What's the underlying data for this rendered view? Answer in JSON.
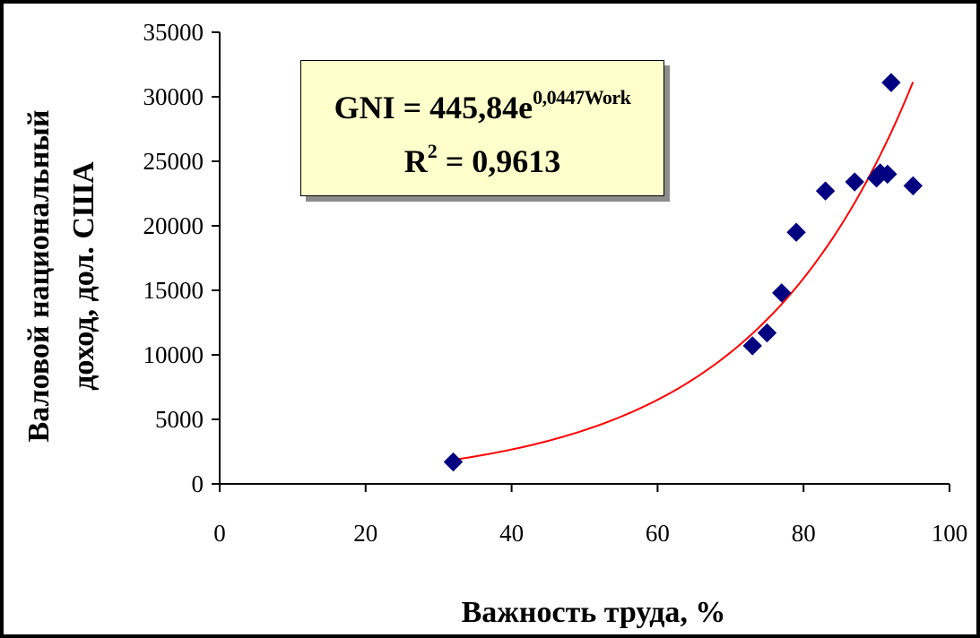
{
  "chart_data": {
    "type": "scatter",
    "xlabel": "Важность труда, %",
    "ylabel_lines": [
      "Валовой национальный",
      "доход, дол. США"
    ],
    "xlim": [
      0,
      100
    ],
    "ylim": [
      0,
      35000
    ],
    "x_ticks": [
      0,
      20,
      40,
      60,
      80,
      100
    ],
    "y_ticks": [
      0,
      5000,
      10000,
      15000,
      20000,
      25000,
      30000,
      35000
    ],
    "x_tick_labels": [
      "0",
      "20",
      "40",
      "60",
      "80",
      "100"
    ],
    "y_tick_labels": [
      "0",
      "5000",
      "10000",
      "15000",
      "20000",
      "25000",
      "30000",
      "35000"
    ],
    "series": [
      {
        "marker": "diamond",
        "color": "#000080",
        "points": [
          {
            "x": 32,
            "y": 1700
          },
          {
            "x": 73,
            "y": 10700
          },
          {
            "x": 75,
            "y": 11700
          },
          {
            "x": 77,
            "y": 14800
          },
          {
            "x": 79,
            "y": 19500
          },
          {
            "x": 83,
            "y": 22700
          },
          {
            "x": 87,
            "y": 23400
          },
          {
            "x": 90,
            "y": 23700
          },
          {
            "x": 90.5,
            "y": 24100
          },
          {
            "x": 91.5,
            "y": 24000
          },
          {
            "x": 92,
            "y": 31100
          },
          {
            "x": 95,
            "y": 23100
          }
        ]
      }
    ],
    "trendline": {
      "type": "exponential",
      "a": 445.84,
      "b": 0.0447,
      "x_range": [
        32,
        95
      ],
      "color": "#ff0000",
      "equation_prefix": "GNI = 445,84e",
      "equation_exponent": "0,0447Work",
      "r2_prefix": "R",
      "r2_superscript": "2",
      "r2_value": " = 0,9613"
    },
    "grid": false
  }
}
